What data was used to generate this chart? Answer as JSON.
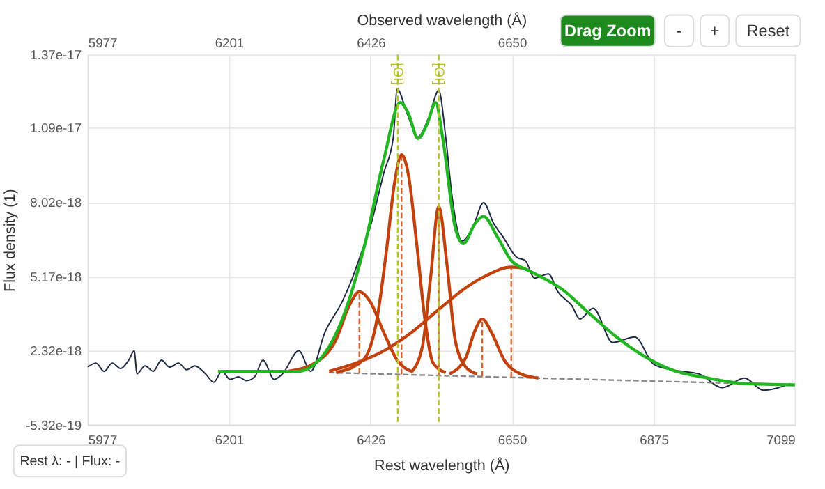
{
  "chart_data": {
    "type": "line",
    "xlabel": "Rest wavelength (Å)",
    "ylabel": "Flux density (1)",
    "x2label": "Observed wavelength (Å)",
    "xlim": [
      5977,
      7099
    ],
    "xticks": [
      5977,
      6201,
      6426,
      6650,
      6875,
      7099
    ],
    "x2lim": [
      5977,
      7099
    ],
    "x2ticks": [
      5977,
      6201,
      6426,
      6650
    ],
    "ylim": [
      -5.32e-19,
      1.37e-17
    ],
    "yticks": [
      -5.32e-19,
      2.32e-18,
      5.17e-18,
      8.02e-18,
      1.09e-17,
      1.37e-17
    ],
    "grid": true,
    "marker": "none",
    "series": [
      {
        "color": "#1e2a44",
        "line_style": "solid",
        "x": [
          5977,
          5990,
          6003,
          6016,
          6029,
          6042,
          6051,
          6055,
          6068,
          6081,
          6094,
          6107,
          6121,
          6134,
          6147,
          6164,
          6177,
          6190,
          6203,
          6216,
          6229,
          6242,
          6255,
          6273,
          6286,
          6312,
          6331,
          6353,
          6381,
          6397,
          6410,
          6425,
          6447,
          6462,
          6468,
          6484,
          6501,
          6518,
          6534,
          6545,
          6555,
          6571,
          6588,
          6605,
          6621,
          6636,
          6658,
          6671,
          6686,
          6708,
          6723,
          6745,
          6758,
          6779,
          6810,
          6845,
          6875,
          6903,
          6947,
          6984,
          7019,
          7049,
          7092
        ],
        "values": [
          1.68e-18,
          1.84e-18,
          1.52e-18,
          1.84e-18,
          1.63e-18,
          1.95e-18,
          2.31e-18,
          1.42e-18,
          1.73e-18,
          1.52e-18,
          1.95e-18,
          1.68e-18,
          1.84e-18,
          1.58e-18,
          1.73e-18,
          1.42e-18,
          1.1e-18,
          1.52e-18,
          1.21e-18,
          1.31e-18,
          1.16e-18,
          1.31e-18,
          1.95e-18,
          1.21e-18,
          1.42e-18,
          2.31e-18,
          1.52e-18,
          3e-18,
          4.21e-18,
          5.11e-18,
          6e-18,
          7.06e-18,
          9.17e-18,
          1.054e-17,
          1.238e-17,
          1.143e-17,
          1.054e-17,
          1.128e-17,
          1.233e-17,
          1.054e-17,
          8.27e-18,
          6.53e-18,
          7.06e-18,
          8.01e-18,
          7.22e-18,
          6.69e-18,
          5.9e-18,
          5.79e-18,
          5.11e-18,
          5.27e-18,
          4.58e-18,
          4.05e-18,
          3.53e-18,
          3.95e-18,
          2.63e-18,
          2.84e-18,
          1.79e-18,
          1.58e-18,
          1.42e-18,
          8.9e-19,
          1.26e-18,
          7.9e-19,
          1.05e-18
        ]
      },
      {
        "color": "#888888",
        "line_style": "dashed",
        "x": [
          6360,
          7099
        ],
        "values": [
          1.47e-18,
          1e-18
        ]
      },
      {
        "color": "#d9622b",
        "line_style": "dashed",
        "x": [
          6408,
          6408
        ],
        "values": [
          1.44e-18,
          4.58e-18
        ]
      },
      {
        "color": "#d9622b",
        "line_style": "dashed",
        "x": [
          6475,
          6475
        ],
        "values": [
          1.4e-18,
          9.85e-18
        ]
      },
      {
        "color": "#d9622b",
        "line_style": "dashed",
        "x": [
          6534,
          6534
        ],
        "values": [
          1.36e-18,
          7.85e-18
        ]
      },
      {
        "color": "#d9622b",
        "line_style": "dashed",
        "x": [
          6603,
          6603
        ],
        "values": [
          1.32e-18,
          3.53e-18
        ]
      },
      {
        "color": "#d9622b",
        "line_style": "dashed",
        "x": [
          6649,
          6649
        ],
        "values": [
          1.29e-18,
          5.53e-18
        ]
      },
      {
        "color": "#c2410c",
        "line_style": "solid",
        "x": [
          6294,
          6338,
          6371,
          6392,
          6408,
          6425,
          6447,
          6468,
          6490
        ],
        "values": [
          1.52e-18,
          1.84e-18,
          2.74e-18,
          4.05e-18,
          4.58e-18,
          4.21e-18,
          3e-18,
          1.95e-18,
          1.52e-18
        ]
      },
      {
        "color": "#c2410c",
        "line_style": "solid",
        "x": [
          6371,
          6414,
          6436,
          6451,
          6464,
          6475,
          6486,
          6499,
          6512,
          6525,
          6545
        ],
        "values": [
          1.47e-18,
          1.95e-18,
          3.53e-18,
          6.16e-18,
          8.8e-18,
          9.85e-18,
          9.06e-18,
          6.43e-18,
          3.53e-18,
          1.84e-18,
          1.47e-18
        ]
      },
      {
        "color": "#c2410c",
        "line_style": "solid",
        "x": [
          6490,
          6508,
          6521,
          6534,
          6547,
          6560,
          6577,
          6595
        ],
        "values": [
          1.47e-18,
          2.47e-18,
          5.11e-18,
          7.85e-18,
          5.64e-18,
          2.74e-18,
          1.68e-18,
          1.42e-18
        ]
      },
      {
        "color": "#c2410c",
        "line_style": "solid",
        "x": [
          6551,
          6577,
          6590,
          6603,
          6618,
          6638,
          6664,
          6692
        ],
        "values": [
          1.42e-18,
          2.05e-18,
          3e-18,
          3.53e-18,
          3e-18,
          1.95e-18,
          1.42e-18,
          1.26e-18
        ]
      },
      {
        "color": "#c2410c",
        "line_style": "solid",
        "x": [
          6360,
          6403,
          6447,
          6490,
          6534,
          6577,
          6610,
          6649,
          6671
        ],
        "values": [
          1.52e-18,
          1.84e-18,
          2.31e-18,
          3e-18,
          3.9e-18,
          4.74e-18,
          5.21e-18,
          5.53e-18,
          5.48e-18
        ]
      },
      {
        "color": "#22b622",
        "line_style": "solid",
        "x": [
          6184,
          6310,
          6344,
          6381,
          6418,
          6447,
          6473,
          6486,
          6501,
          6516,
          6529,
          6540,
          6560,
          6573,
          6592,
          6605,
          6627,
          6649,
          6679,
          6708,
          6729,
          6766,
          6816,
          6860,
          6903,
          6962,
          7019,
          7099
        ],
        "values": [
          1.52e-18,
          1.52e-18,
          1.95e-18,
          3.53e-18,
          6.53e-18,
          9.69e-18,
          1.186e-17,
          1.143e-17,
          1.048e-17,
          1.106e-17,
          1.186e-17,
          1.054e-17,
          7.06e-18,
          6.43e-18,
          7.22e-18,
          7.48e-18,
          6.69e-18,
          5.79e-18,
          5.37e-18,
          5e-18,
          4.69e-18,
          3.9e-18,
          2.84e-18,
          2.1e-18,
          1.58e-18,
          1.26e-18,
          1.05e-18,
          1e-18
        ]
      }
    ],
    "ref_lines": [
      {
        "axis": "x",
        "value": 6469,
        "label": "[OI]",
        "color": "#b5c41f",
        "line_style": "dashed"
      },
      {
        "axis": "x",
        "value": 6534,
        "label": "[OI]",
        "color": "#b5c41f",
        "line_style": "dashed"
      }
    ],
    "annotations": [
      "Drag Zoom",
      "-",
      "+",
      "Reset",
      "Rest λ: - | Flux: -"
    ]
  }
}
